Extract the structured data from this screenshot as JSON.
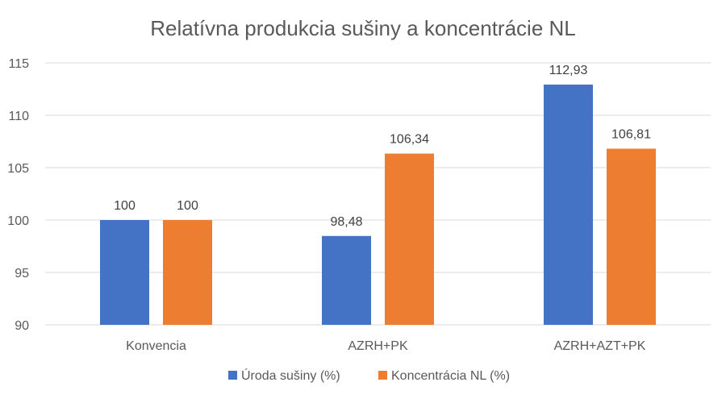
{
  "chart_data": {
    "type": "bar",
    "title": "Relatívna produkcia sušiny a koncentrácie NL",
    "categories": [
      "Konvencia",
      "AZRH+PK",
      "AZRH+AZT+PK"
    ],
    "series": [
      {
        "name": "Úroda sušiny (%)",
        "color": "#4472c4",
        "values": [
          100,
          98.48,
          112.93
        ],
        "labels": [
          "100",
          "98,48",
          "112,93"
        ]
      },
      {
        "name": "Koncentrácia NL (%)",
        "color": "#ed7d31",
        "values": [
          100,
          106.34,
          106.81
        ],
        "labels": [
          "100",
          "106,34",
          "106,81"
        ]
      }
    ],
    "ylim": [
      90,
      115
    ],
    "yticks": [
      90,
      95,
      100,
      105,
      110,
      115
    ],
    "grid": true,
    "legend_position": "bottom"
  }
}
